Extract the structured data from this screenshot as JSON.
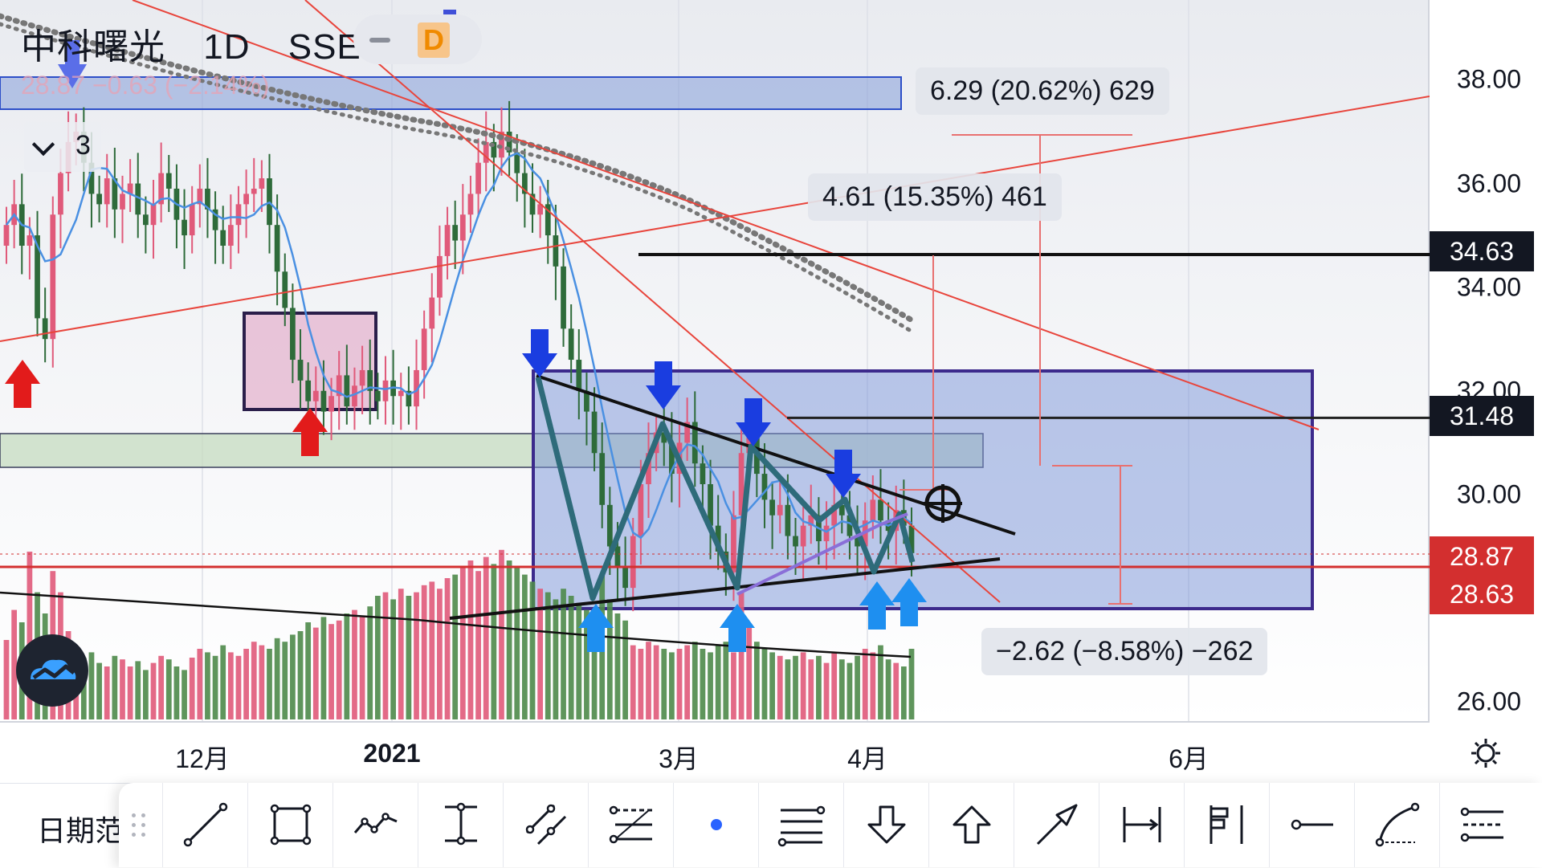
{
  "header": {
    "symbol": "中科曙光",
    "interval": "1D",
    "exchange": "SSE",
    "d_badge": "D",
    "ghost_quote": "28.87  −0.63 (−2.14%)",
    "indicator_count": "3"
  },
  "colors": {
    "up_candle": "#e05a7a",
    "down_candle": "#2e6b3a",
    "ma_line": "#4a90e2",
    "trend_red": "#e8453c",
    "rect_blue": "#7a93d8",
    "rect_border": "#3c2a8c",
    "pink_box": "#e4b4cf",
    "green_zone": "#c6dcc0",
    "badge_dark": "#131722",
    "badge_red": "#d32f2f",
    "arrow_blue": "#1a3de0",
    "arrow_light": "#1e8ff0",
    "arrow_red": "#e21b1b"
  },
  "measurements": [
    {
      "text": "6.29 (20.62%) 629"
    },
    {
      "text": "4.61 (15.35%) 461"
    },
    {
      "text": "−2.62 (−8.58%) −262"
    }
  ],
  "price_badges": [
    {
      "value": "34.63",
      "style": "dark"
    },
    {
      "value": "31.48",
      "style": "dark"
    },
    {
      "value": "28.87",
      "style": "red"
    },
    {
      "value": "28.63",
      "style": "red"
    }
  ],
  "chart_data": {
    "type": "candlestick",
    "ylim": [
      25.6,
      39.4
    ],
    "y_ticks": [
      "38.00",
      "36.00",
      "34.00",
      "32.00",
      "30.00",
      "26.00"
    ],
    "x_ticks": [
      {
        "label": "12月",
        "bold": false
      },
      {
        "label": "2021",
        "bold": true
      },
      {
        "label": "3月",
        "bold": false
      },
      {
        "label": "4月",
        "bold": false
      },
      {
        "label": "6月",
        "bold": false
      }
    ],
    "horizontal_levels": [
      34.63,
      31.48,
      28.87,
      28.63
    ],
    "close_series": [
      35.2,
      35.6,
      34.8,
      35.0,
      33.4,
      33.0,
      35.4,
      36.2,
      36.8,
      37.0,
      36.4,
      35.8,
      35.6,
      36.1,
      35.5,
      35.8,
      36.0,
      35.4,
      35.2,
      35.6,
      36.2,
      35.9,
      35.3,
      35.0,
      35.6,
      35.9,
      35.5,
      35.1,
      34.8,
      35.2,
      35.6,
      35.8,
      35.9,
      36.1,
      35.2,
      34.3,
      33.6,
      32.6,
      32.2,
      31.8,
      32.0,
      31.6,
      31.9,
      32.3,
      31.7,
      32.1,
      32.4,
      32.0,
      31.8,
      32.2,
      31.9,
      32.0,
      31.7,
      32.4,
      33.2,
      33.8,
      34.6,
      35.2,
      34.9,
      35.4,
      35.8,
      36.4,
      36.8,
      36.5,
      37.0,
      36.6,
      36.2,
      35.8,
      35.4,
      35.6,
      35.0,
      34.4,
      33.2,
      32.6,
      32.0,
      31.6,
      30.8,
      29.8,
      29.0,
      28.6,
      28.2,
      29.2,
      30.2,
      30.8,
      31.2,
      31.0,
      30.4,
      31.0,
      31.4,
      30.6,
      30.2,
      29.4,
      28.9,
      28.5,
      29.6,
      30.8,
      31.1,
      30.4,
      29.9,
      29.6,
      29.8,
      29.2,
      29.0,
      29.4,
      29.6,
      29.1,
      29.4,
      29.8,
      29.6,
      29.2,
      29.0,
      29.5,
      29.9,
      29.5,
      29.3,
      29.7,
      29.4,
      28.87
    ],
    "volume": [
      0.45,
      0.62,
      0.55,
      0.95,
      0.72,
      0.6,
      0.84,
      0.72,
      0.5,
      0.4,
      0.35,
      0.38,
      0.32,
      0.3,
      0.36,
      0.34,
      0.3,
      0.33,
      0.28,
      0.32,
      0.36,
      0.34,
      0.3,
      0.28,
      0.35,
      0.4,
      0.38,
      0.36,
      0.42,
      0.38,
      0.36,
      0.4,
      0.44,
      0.42,
      0.4,
      0.46,
      0.44,
      0.48,
      0.5,
      0.55,
      0.52,
      0.58,
      0.54,
      0.56,
      0.6,
      0.62,
      0.58,
      0.64,
      0.7,
      0.72,
      0.68,
      0.74,
      0.7,
      0.72,
      0.76,
      0.78,
      0.74,
      0.8,
      0.82,
      0.86,
      0.9,
      0.84,
      0.92,
      0.88,
      0.96,
      0.9,
      0.86,
      0.82,
      0.78,
      0.74,
      0.72,
      0.68,
      0.74,
      0.7,
      0.66,
      0.62,
      0.58,
      0.82,
      0.68,
      0.6,
      0.56,
      0.42,
      0.4,
      0.44,
      0.42,
      0.4,
      0.38,
      0.4,
      0.42,
      0.44,
      0.4,
      0.38,
      0.42,
      0.44,
      0.38,
      0.72,
      0.52,
      0.44,
      0.4,
      0.38,
      0.36,
      0.34,
      0.36,
      0.38,
      0.34,
      0.36,
      0.32,
      0.38,
      0.34,
      0.32,
      0.36,
      0.4,
      0.38,
      0.42,
      0.34,
      0.32,
      0.3,
      0.4
    ]
  },
  "toolbar": {
    "date_range_label": "日期范",
    "tools": [
      {
        "icon": "trend-line-icon"
      },
      {
        "icon": "rectangle-icon"
      },
      {
        "icon": "path-icon"
      },
      {
        "icon": "price-range-icon"
      },
      {
        "icon": "parallel-channel-icon"
      },
      {
        "icon": "fib-retracement-icon"
      },
      {
        "icon": "dot-icon"
      },
      {
        "icon": "horizontal-lines-icon"
      },
      {
        "icon": "arrow-down-icon"
      },
      {
        "icon": "arrow-up-icon"
      },
      {
        "icon": "arrow-marker-icon"
      },
      {
        "icon": "date-range-icon"
      },
      {
        "icon": "long-position-icon"
      },
      {
        "icon": "horizontal-ray-icon"
      },
      {
        "icon": "curve-icon"
      },
      {
        "icon": "fib-channel-icon"
      }
    ]
  }
}
